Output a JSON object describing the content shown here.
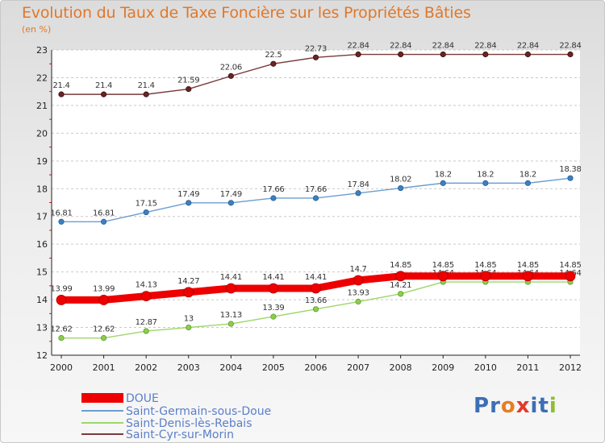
{
  "header": {
    "title": "Evolution du Taux de Taxe Foncière sur les Propriétés Bâties",
    "unit": "(en %)"
  },
  "logo": {
    "text": "Proxiti",
    "colors": [
      "#3b6fb6",
      "#3b6fb6",
      "#e67e22",
      "#e23b2c",
      "#3b6fb6",
      "#3b6fb6",
      "#8bbf2f"
    ]
  },
  "chart_data": {
    "type": "line",
    "title": "Evolution du Taux de Taxe Foncière sur les Propriétés Bâties",
    "ylabel": "(en %)",
    "xlabel": "",
    "x": [
      "2000",
      "2001",
      "2002",
      "2003",
      "2004",
      "2005",
      "2006",
      "2007",
      "2008",
      "2009",
      "2010",
      "2011",
      "2012"
    ],
    "ylim": [
      12,
      23
    ],
    "yticks": [
      "12",
      "13",
      "14",
      "15",
      "16",
      "17",
      "18",
      "19",
      "20",
      "21",
      "22",
      "23"
    ],
    "grid": "horizontal dashed",
    "legend": "bottom-left",
    "series": [
      {
        "name": "DOUE",
        "color": "#ee0000",
        "values": [
          13.99,
          13.99,
          14.13,
          14.27,
          14.41,
          14.41,
          14.41,
          14.7,
          14.85,
          14.85,
          14.85,
          14.85,
          14.85
        ],
        "labels": [
          "13.99",
          "13.99",
          "14.13",
          "14.27",
          "14.41",
          "14.41",
          "14.41",
          "14.7",
          "14.85",
          "14.85",
          "14.85",
          "14.85",
          "14.85"
        ]
      },
      {
        "name": "Saint-Germain-sous-Doue",
        "color": "#6c9ed0",
        "values": [
          16.81,
          16.81,
          17.15,
          17.49,
          17.49,
          17.66,
          17.66,
          17.84,
          18.02,
          18.2,
          18.2,
          18.2,
          18.38
        ],
        "labels": [
          "16.81",
          "16.81",
          "17.15",
          "17.49",
          "17.49",
          "17.66",
          "17.66",
          "17.84",
          "18.02",
          "18.2",
          "18.2",
          "18.2",
          "18.38"
        ]
      },
      {
        "name": "Saint-Denis-lès-Rebais",
        "color": "#9ed66a",
        "values": [
          12.62,
          12.62,
          12.87,
          13.0,
          13.13,
          13.39,
          13.66,
          13.93,
          14.21,
          14.64,
          14.64,
          14.64,
          14.64
        ],
        "labels": [
          "12.62",
          "12.62",
          "12.87",
          "13",
          "13.13",
          "13.39",
          "13.66",
          "13.93",
          "14.21",
          "14.64",
          "14.64",
          "14.64",
          "14.64"
        ]
      },
      {
        "name": "Saint-Cyr-sur-Morin",
        "color": "#7a3a3a",
        "values": [
          21.4,
          21.4,
          21.4,
          21.59,
          22.06,
          22.5,
          22.73,
          22.84,
          22.84,
          22.84,
          22.84,
          22.84,
          22.84
        ],
        "labels": [
          "21.4",
          "21.4",
          "21.4",
          "21.59",
          "22.06",
          "22.5",
          "22.73",
          "22.84",
          "22.84",
          "22.84",
          "22.84",
          "22.84",
          "22.84"
        ]
      }
    ]
  }
}
